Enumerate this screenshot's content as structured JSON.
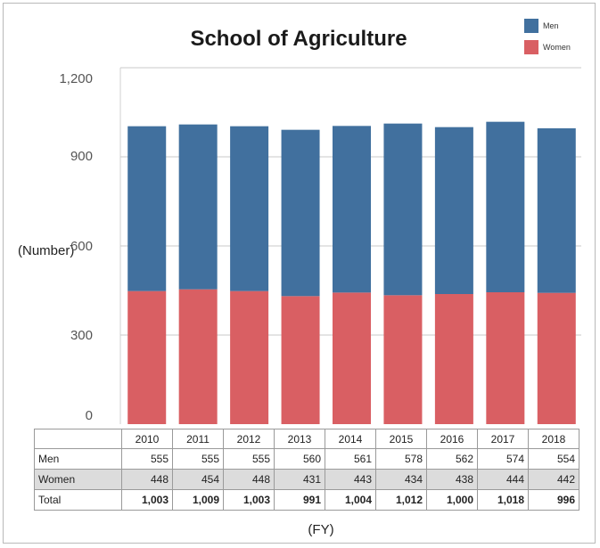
{
  "chart_data": {
    "type": "bar",
    "stacked": true,
    "title": "School of Agriculture",
    "ylabel": "(Number)",
    "xlabel": "(FY)",
    "ylim": [
      0,
      1200
    ],
    "yticks": [
      "0",
      "300",
      "600",
      "900",
      "1,200"
    ],
    "categories": [
      "2010",
      "2011",
      "2012",
      "2013",
      "2014",
      "2015",
      "2016",
      "2017",
      "2018"
    ],
    "series": [
      {
        "name": "Women",
        "color": "#d95f63",
        "values": [
          448,
          454,
          448,
          431,
          443,
          434,
          438,
          444,
          442
        ]
      },
      {
        "name": "Men",
        "color": "#41709e",
        "values": [
          555,
          555,
          555,
          560,
          561,
          578,
          562,
          574,
          554
        ]
      }
    ],
    "legend": [
      {
        "name": "Men",
        "color": "#41709e"
      },
      {
        "name": "Women",
        "color": "#d95f63"
      }
    ],
    "legend_position": "top-right",
    "grid": true,
    "table": {
      "rows": [
        {
          "label": "Men",
          "cells": [
            "555",
            "555",
            "555",
            "560",
            "561",
            "578",
            "562",
            "574",
            "554"
          ]
        },
        {
          "label": "Women",
          "cells": [
            "448",
            "454",
            "448",
            "431",
            "443",
            "434",
            "438",
            "444",
            "442"
          ]
        },
        {
          "label": "Total",
          "cells": [
            "1,003",
            "1,009",
            "1,003",
            "991",
            "1,004",
            "1,012",
            "1,000",
            "1,018",
            "996"
          ]
        }
      ]
    }
  }
}
